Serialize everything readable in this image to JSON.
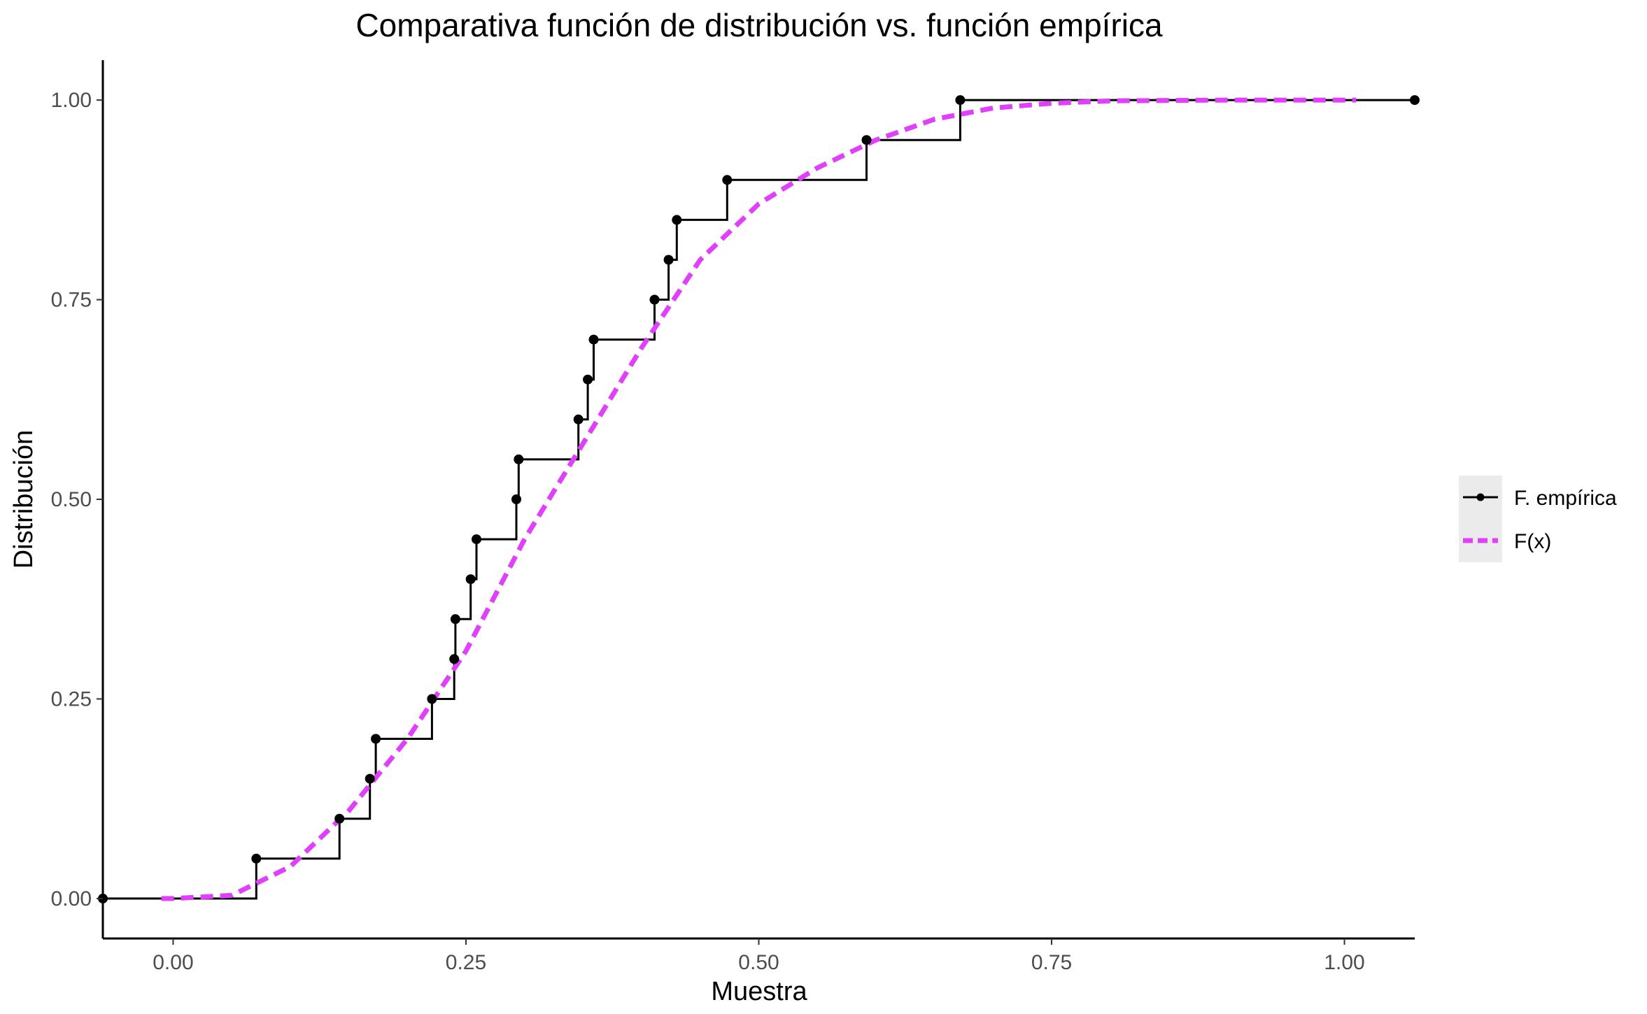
{
  "chart_data": {
    "type": "line",
    "title": "Comparativa función de distribución vs. función empírica",
    "xlabel": "Muestra",
    "ylabel": "Distribución",
    "xlim": [
      -0.06,
      1.06
    ],
    "ylim": [
      -0.05,
      1.05
    ],
    "x_ticks": [
      0,
      0.25,
      0.5,
      0.75,
      1
    ],
    "x_tick_labels": [
      "0.00",
      "0.25",
      "0.50",
      "0.75",
      "1.00"
    ],
    "y_ticks": [
      0,
      0.25,
      0.5,
      0.75,
      1
    ],
    "y_tick_labels": [
      "0.00",
      "0.25",
      "0.50",
      "0.75",
      "1.00"
    ],
    "grid": false,
    "legend_position": "right",
    "series": [
      {
        "name": "F. empírica",
        "kind": "step",
        "color": "#000000",
        "x": [
          -0.06,
          0.071,
          0.142,
          0.168,
          0.173,
          0.221,
          0.24,
          0.241,
          0.254,
          0.259,
          0.293,
          0.295,
          0.346,
          0.354,
          0.359,
          0.411,
          0.423,
          0.43,
          0.473,
          0.592,
          0.672,
          1.06
        ],
        "y": [
          0.0,
          0.05,
          0.1,
          0.15,
          0.2,
          0.25,
          0.3,
          0.35,
          0.4,
          0.45,
          0.5,
          0.55,
          0.6,
          0.65,
          0.7,
          0.75,
          0.8,
          0.85,
          0.9,
          0.95,
          1.0,
          1.0
        ]
      },
      {
        "name": "F(x)",
        "kind": "dashed-line",
        "color": "#e040fb",
        "x": [
          -0.01,
          0.0,
          0.05,
          0.1,
          0.15,
          0.2,
          0.25,
          0.3,
          0.35,
          0.4,
          0.45,
          0.5,
          0.55,
          0.6,
          0.65,
          0.7,
          0.75,
          0.8,
          0.9,
          1.0,
          1.01
        ],
        "y": [
          0.0,
          0.0,
          0.004,
          0.04,
          0.11,
          0.2,
          0.31,
          0.45,
          0.57,
          0.69,
          0.8,
          0.87,
          0.915,
          0.95,
          0.976,
          0.99,
          0.996,
          0.999,
          1.0,
          1.0,
          1.0
        ]
      }
    ]
  }
}
